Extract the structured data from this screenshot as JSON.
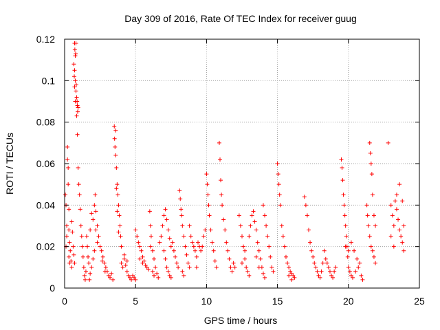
{
  "chart_data": {
    "type": "scatter",
    "title": "Day 309 of 2016, Rate Of TEC Index for receiver guug",
    "xlabel": "GPS time / hours",
    "ylabel": "ROTI / TECUs",
    "xlim": [
      0,
      25
    ],
    "ylim": [
      0,
      0.12
    ],
    "x_ticks": [
      "0",
      "5",
      "10",
      "15",
      "20",
      "25"
    ],
    "y_ticks": [
      "0",
      "0.02",
      "0.04",
      "0.06",
      "0.08",
      "0.1",
      "0.12"
    ],
    "x_tick_values": [
      0,
      5,
      10,
      15,
      20,
      25
    ],
    "y_tick_values": [
      0,
      0.02,
      0.04,
      0.06,
      0.08,
      0.1,
      0.12
    ],
    "grid": true,
    "marker": "+",
    "series_color": "#ff0000",
    "points": [
      [
        0.05,
        0.045
      ],
      [
        0.1,
        0.04
      ],
      [
        0.15,
        0.03
      ],
      [
        0.2,
        0.062
      ],
      [
        0.2,
        0.068
      ],
      [
        0.25,
        0.058
      ],
      [
        0.25,
        0.05
      ],
      [
        0.3,
        0.038
      ],
      [
        0.3,
        0.028
      ],
      [
        0.35,
        0.022
      ],
      [
        0.4,
        0.018
      ],
      [
        0.45,
        0.013
      ],
      [
        0.5,
        0.01
      ],
      [
        0.5,
        0.032
      ],
      [
        0.55,
        0.027
      ],
      [
        0.6,
        0.02
      ],
      [
        0.65,
        0.016
      ],
      [
        0.7,
        0.012
      ],
      [
        0.3,
        0.015
      ],
      [
        0.35,
        0.012
      ],
      [
        0.1,
        0.02
      ],
      [
        0.15,
        0.025
      ],
      [
        0.7,
        0.118
      ],
      [
        0.72,
        0.115
      ],
      [
        0.75,
        0.112
      ],
      [
        0.65,
        0.108
      ],
      [
        0.7,
        0.105
      ],
      [
        0.75,
        0.1
      ],
      [
        0.7,
        0.097
      ],
      [
        0.8,
        0.118
      ],
      [
        0.78,
        0.113
      ],
      [
        0.68,
        0.102
      ],
      [
        0.82,
        0.098
      ],
      [
        0.85,
        0.092
      ],
      [
        0.88,
        0.09
      ],
      [
        0.9,
        0.088
      ],
      [
        0.92,
        0.085
      ],
      [
        0.8,
        0.095
      ],
      [
        0.85,
        0.083
      ],
      [
        0.95,
        0.087
      ],
      [
        0.75,
        0.09
      ],
      [
        0.9,
        0.074
      ],
      [
        0.95,
        0.058
      ],
      [
        1.0,
        0.05
      ],
      [
        1.05,
        0.045
      ],
      [
        1.1,
        0.038
      ],
      [
        1.15,
        0.03
      ],
      [
        1.2,
        0.025
      ],
      [
        1.25,
        0.02
      ],
      [
        1.3,
        0.015
      ],
      [
        1.35,
        0.01
      ],
      [
        1.4,
        0.006
      ],
      [
        1.45,
        0.004
      ],
      [
        1.5,
        0.008
      ],
      [
        1.6,
        0.02
      ],
      [
        1.65,
        0.015
      ],
      [
        1.7,
        0.012
      ],
      [
        1.55,
        0.025
      ],
      [
        1.8,
        0.028
      ],
      [
        1.9,
        0.036
      ],
      [
        2.0,
        0.033
      ],
      [
        2.1,
        0.04
      ],
      [
        2.15,
        0.045
      ],
      [
        2.2,
        0.037
      ],
      [
        2.3,
        0.03
      ],
      [
        2.4,
        0.025
      ],
      [
        2.5,
        0.02
      ],
      [
        2.2,
        0.028
      ],
      [
        2.3,
        0.022
      ],
      [
        2.1,
        0.018
      ],
      [
        2.0,
        0.014
      ],
      [
        1.9,
        0.01
      ],
      [
        1.8,
        0.007
      ],
      [
        1.75,
        0.004
      ],
      [
        2.6,
        0.018
      ],
      [
        2.7,
        0.015
      ],
      [
        2.8,
        0.012
      ],
      [
        2.9,
        0.01
      ],
      [
        3.0,
        0.008
      ],
      [
        3.1,
        0.006
      ],
      [
        3.2,
        0.005
      ],
      [
        3.3,
        0.007
      ],
      [
        3.4,
        0.004
      ],
      [
        2.65,
        0.013
      ],
      [
        2.85,
        0.008
      ],
      [
        3.5,
        0.078
      ],
      [
        3.52,
        0.072
      ],
      [
        3.55,
        0.068
      ],
      [
        3.6,
        0.064
      ],
      [
        3.65,
        0.058
      ],
      [
        3.7,
        0.05
      ],
      [
        3.75,
        0.045
      ],
      [
        3.8,
        0.04
      ],
      [
        3.85,
        0.035
      ],
      [
        3.9,
        0.03
      ],
      [
        3.95,
        0.025
      ],
      [
        4.0,
        0.02
      ],
      [
        3.6,
        0.076
      ],
      [
        3.65,
        0.048
      ],
      [
        3.7,
        0.037
      ],
      [
        3.8,
        0.027
      ],
      [
        4.0,
        0.012
      ],
      [
        4.1,
        0.01
      ],
      [
        4.2,
        0.014
      ],
      [
        4.3,
        0.011
      ],
      [
        4.4,
        0.008
      ],
      [
        4.5,
        0.006
      ],
      [
        4.6,
        0.005
      ],
      [
        4.7,
        0.004
      ],
      [
        4.8,
        0.006
      ],
      [
        4.9,
        0.005
      ],
      [
        5.0,
        0.004
      ],
      [
        4.2,
        0.016
      ],
      [
        4.4,
        0.013
      ],
      [
        5.0,
        0.028
      ],
      [
        5.1,
        0.025
      ],
      [
        5.2,
        0.022
      ],
      [
        5.3,
        0.02
      ],
      [
        5.4,
        0.018
      ],
      [
        5.5,
        0.015
      ],
      [
        5.6,
        0.013
      ],
      [
        5.7,
        0.011
      ],
      [
        5.8,
        0.01
      ],
      [
        5.9,
        0.009
      ],
      [
        5.3,
        0.014
      ],
      [
        5.5,
        0.012
      ],
      [
        6.0,
        0.037
      ],
      [
        6.05,
        0.03
      ],
      [
        6.1,
        0.025
      ],
      [
        6.2,
        0.018
      ],
      [
        6.3,
        0.014
      ],
      [
        6.4,
        0.01
      ],
      [
        6.5,
        0.007
      ],
      [
        6.6,
        0.005
      ],
      [
        6.2,
        0.008
      ],
      [
        6.3,
        0.006
      ],
      [
        6.05,
        0.02
      ],
      [
        6.7,
        0.022
      ],
      [
        6.8,
        0.025
      ],
      [
        6.9,
        0.03
      ],
      [
        7.0,
        0.035
      ],
      [
        7.1,
        0.038
      ],
      [
        7.2,
        0.033
      ],
      [
        7.3,
        0.028
      ],
      [
        7.4,
        0.024
      ],
      [
        7.5,
        0.02
      ],
      [
        7.0,
        0.018
      ],
      [
        7.1,
        0.014
      ],
      [
        7.2,
        0.01
      ],
      [
        7.3,
        0.008
      ],
      [
        7.4,
        0.006
      ],
      [
        7.5,
        0.005
      ],
      [
        7.6,
        0.022
      ],
      [
        7.7,
        0.018
      ],
      [
        7.8,
        0.015
      ],
      [
        7.9,
        0.012
      ],
      [
        8.0,
        0.01
      ],
      [
        8.1,
        0.047
      ],
      [
        8.15,
        0.043
      ],
      [
        8.2,
        0.038
      ],
      [
        8.25,
        0.035
      ],
      [
        8.3,
        0.03
      ],
      [
        8.4,
        0.025
      ],
      [
        8.5,
        0.02
      ],
      [
        8.6,
        0.016
      ],
      [
        8.7,
        0.012
      ],
      [
        8.8,
        0.01
      ],
      [
        8.3,
        0.008
      ],
      [
        8.4,
        0.006
      ],
      [
        8.8,
        0.03
      ],
      [
        8.9,
        0.025
      ],
      [
        9.0,
        0.022
      ],
      [
        9.1,
        0.02
      ],
      [
        9.2,
        0.018
      ],
      [
        9.3,
        0.015
      ],
      [
        9.4,
        0.022
      ],
      [
        9.5,
        0.02
      ],
      [
        9.6,
        0.018
      ],
      [
        9.7,
        0.02
      ],
      [
        9.8,
        0.025
      ],
      [
        9.9,
        0.028
      ],
      [
        9.3,
        0.01
      ],
      [
        10.0,
        0.055
      ],
      [
        10.05,
        0.05
      ],
      [
        10.1,
        0.045
      ],
      [
        10.15,
        0.04
      ],
      [
        10.2,
        0.035
      ],
      [
        10.3,
        0.028
      ],
      [
        10.4,
        0.022
      ],
      [
        10.5,
        0.018
      ],
      [
        10.6,
        0.013
      ],
      [
        10.7,
        0.01
      ],
      [
        10.9,
        0.07
      ],
      [
        10.95,
        0.062
      ],
      [
        11.0,
        0.052
      ],
      [
        11.05,
        0.045
      ],
      [
        11.1,
        0.04
      ],
      [
        11.2,
        0.033
      ],
      [
        11.3,
        0.028
      ],
      [
        11.4,
        0.022
      ],
      [
        11.5,
        0.018
      ],
      [
        11.6,
        0.014
      ],
      [
        11.7,
        0.01
      ],
      [
        11.8,
        0.008
      ],
      [
        11.9,
        0.012
      ],
      [
        12.0,
        0.01
      ],
      [
        12.3,
        0.035
      ],
      [
        12.4,
        0.03
      ],
      [
        12.5,
        0.025
      ],
      [
        12.6,
        0.02
      ],
      [
        12.7,
        0.014
      ],
      [
        12.8,
        0.01
      ],
      [
        12.9,
        0.008
      ],
      [
        13.0,
        0.006
      ],
      [
        12.5,
        0.012
      ],
      [
        12.7,
        0.018
      ],
      [
        13.0,
        0.025
      ],
      [
        13.1,
        0.03
      ],
      [
        13.2,
        0.035
      ],
      [
        13.3,
        0.037
      ],
      [
        13.4,
        0.032
      ],
      [
        13.5,
        0.028
      ],
      [
        13.6,
        0.022
      ],
      [
        13.7,
        0.018
      ],
      [
        13.8,
        0.014
      ],
      [
        13.9,
        0.01
      ],
      [
        14.0,
        0.007
      ],
      [
        14.1,
        0.005
      ],
      [
        13.5,
        0.015
      ],
      [
        13.7,
        0.01
      ],
      [
        14.0,
        0.04
      ],
      [
        14.1,
        0.035
      ],
      [
        14.2,
        0.03
      ],
      [
        14.3,
        0.025
      ],
      [
        14.4,
        0.02
      ],
      [
        14.5,
        0.015
      ],
      [
        14.6,
        0.01
      ],
      [
        14.7,
        0.008
      ],
      [
        15.0,
        0.06
      ],
      [
        15.05,
        0.055
      ],
      [
        15.1,
        0.05
      ],
      [
        15.15,
        0.045
      ],
      [
        15.2,
        0.04
      ],
      [
        15.3,
        0.03
      ],
      [
        15.4,
        0.025
      ],
      [
        15.5,
        0.02
      ],
      [
        15.6,
        0.015
      ],
      [
        15.7,
        0.012
      ],
      [
        15.8,
        0.01
      ],
      [
        15.9,
        0.008
      ],
      [
        16.0,
        0.007
      ],
      [
        16.1,
        0.006
      ],
      [
        16.2,
        0.005
      ],
      [
        15.8,
        0.006
      ],
      [
        16.0,
        0.004
      ],
      [
        16.9,
        0.044
      ],
      [
        17.0,
        0.04
      ],
      [
        17.1,
        0.035
      ],
      [
        17.2,
        0.028
      ],
      [
        17.3,
        0.022
      ],
      [
        17.4,
        0.018
      ],
      [
        17.5,
        0.015
      ],
      [
        17.6,
        0.012
      ],
      [
        17.7,
        0.01
      ],
      [
        17.8,
        0.008
      ],
      [
        17.9,
        0.006
      ],
      [
        18.0,
        0.005
      ],
      [
        18.1,
        0.008
      ],
      [
        18.2,
        0.012
      ],
      [
        18.3,
        0.018
      ],
      [
        18.4,
        0.014
      ],
      [
        18.5,
        0.012
      ],
      [
        18.6,
        0.01
      ],
      [
        18.7,
        0.008
      ],
      [
        18.8,
        0.006
      ],
      [
        18.9,
        0.005
      ],
      [
        19.0,
        0.008
      ],
      [
        19.1,
        0.01
      ],
      [
        19.5,
        0.062
      ],
      [
        19.55,
        0.058
      ],
      [
        19.6,
        0.052
      ],
      [
        19.65,
        0.045
      ],
      [
        19.7,
        0.04
      ],
      [
        19.75,
        0.035
      ],
      [
        19.8,
        0.03
      ],
      [
        19.85,
        0.025
      ],
      [
        19.9,
        0.02
      ],
      [
        19.95,
        0.015
      ],
      [
        20.0,
        0.01
      ],
      [
        20.1,
        0.008
      ],
      [
        20.2,
        0.006
      ],
      [
        20.3,
        0.005
      ],
      [
        20.5,
        0.008
      ],
      [
        20.7,
        0.01
      ],
      [
        20.9,
        0.006
      ],
      [
        21.0,
        0.004
      ],
      [
        19.8,
        0.02
      ],
      [
        20.0,
        0.018
      ],
      [
        20.2,
        0.022
      ],
      [
        20.4,
        0.018
      ],
      [
        20.6,
        0.014
      ],
      [
        20.8,
        0.012
      ],
      [
        21.3,
        0.04
      ],
      [
        21.35,
        0.035
      ],
      [
        21.4,
        0.03
      ],
      [
        21.5,
        0.025
      ],
      [
        21.6,
        0.02
      ],
      [
        21.7,
        0.018
      ],
      [
        21.8,
        0.015
      ],
      [
        21.9,
        0.012
      ],
      [
        21.5,
        0.07
      ],
      [
        21.55,
        0.065
      ],
      [
        21.6,
        0.06
      ],
      [
        21.65,
        0.055
      ],
      [
        21.7,
        0.045
      ],
      [
        21.8,
        0.035
      ],
      [
        21.9,
        0.03
      ],
      [
        22.8,
        0.07
      ],
      [
        23.0,
        0.04
      ],
      [
        23.1,
        0.035
      ],
      [
        23.2,
        0.03
      ],
      [
        23.3,
        0.042
      ],
      [
        23.4,
        0.038
      ],
      [
        23.5,
        0.033
      ],
      [
        23.6,
        0.028
      ],
      [
        23.7,
        0.025
      ],
      [
        23.8,
        0.022
      ],
      [
        23.9,
        0.018
      ],
      [
        23.0,
        0.025
      ],
      [
        23.2,
        0.02
      ],
      [
        23.4,
        0.045
      ],
      [
        23.6,
        0.05
      ],
      [
        23.8,
        0.042
      ],
      [
        23.9,
        0.03
      ]
    ]
  }
}
